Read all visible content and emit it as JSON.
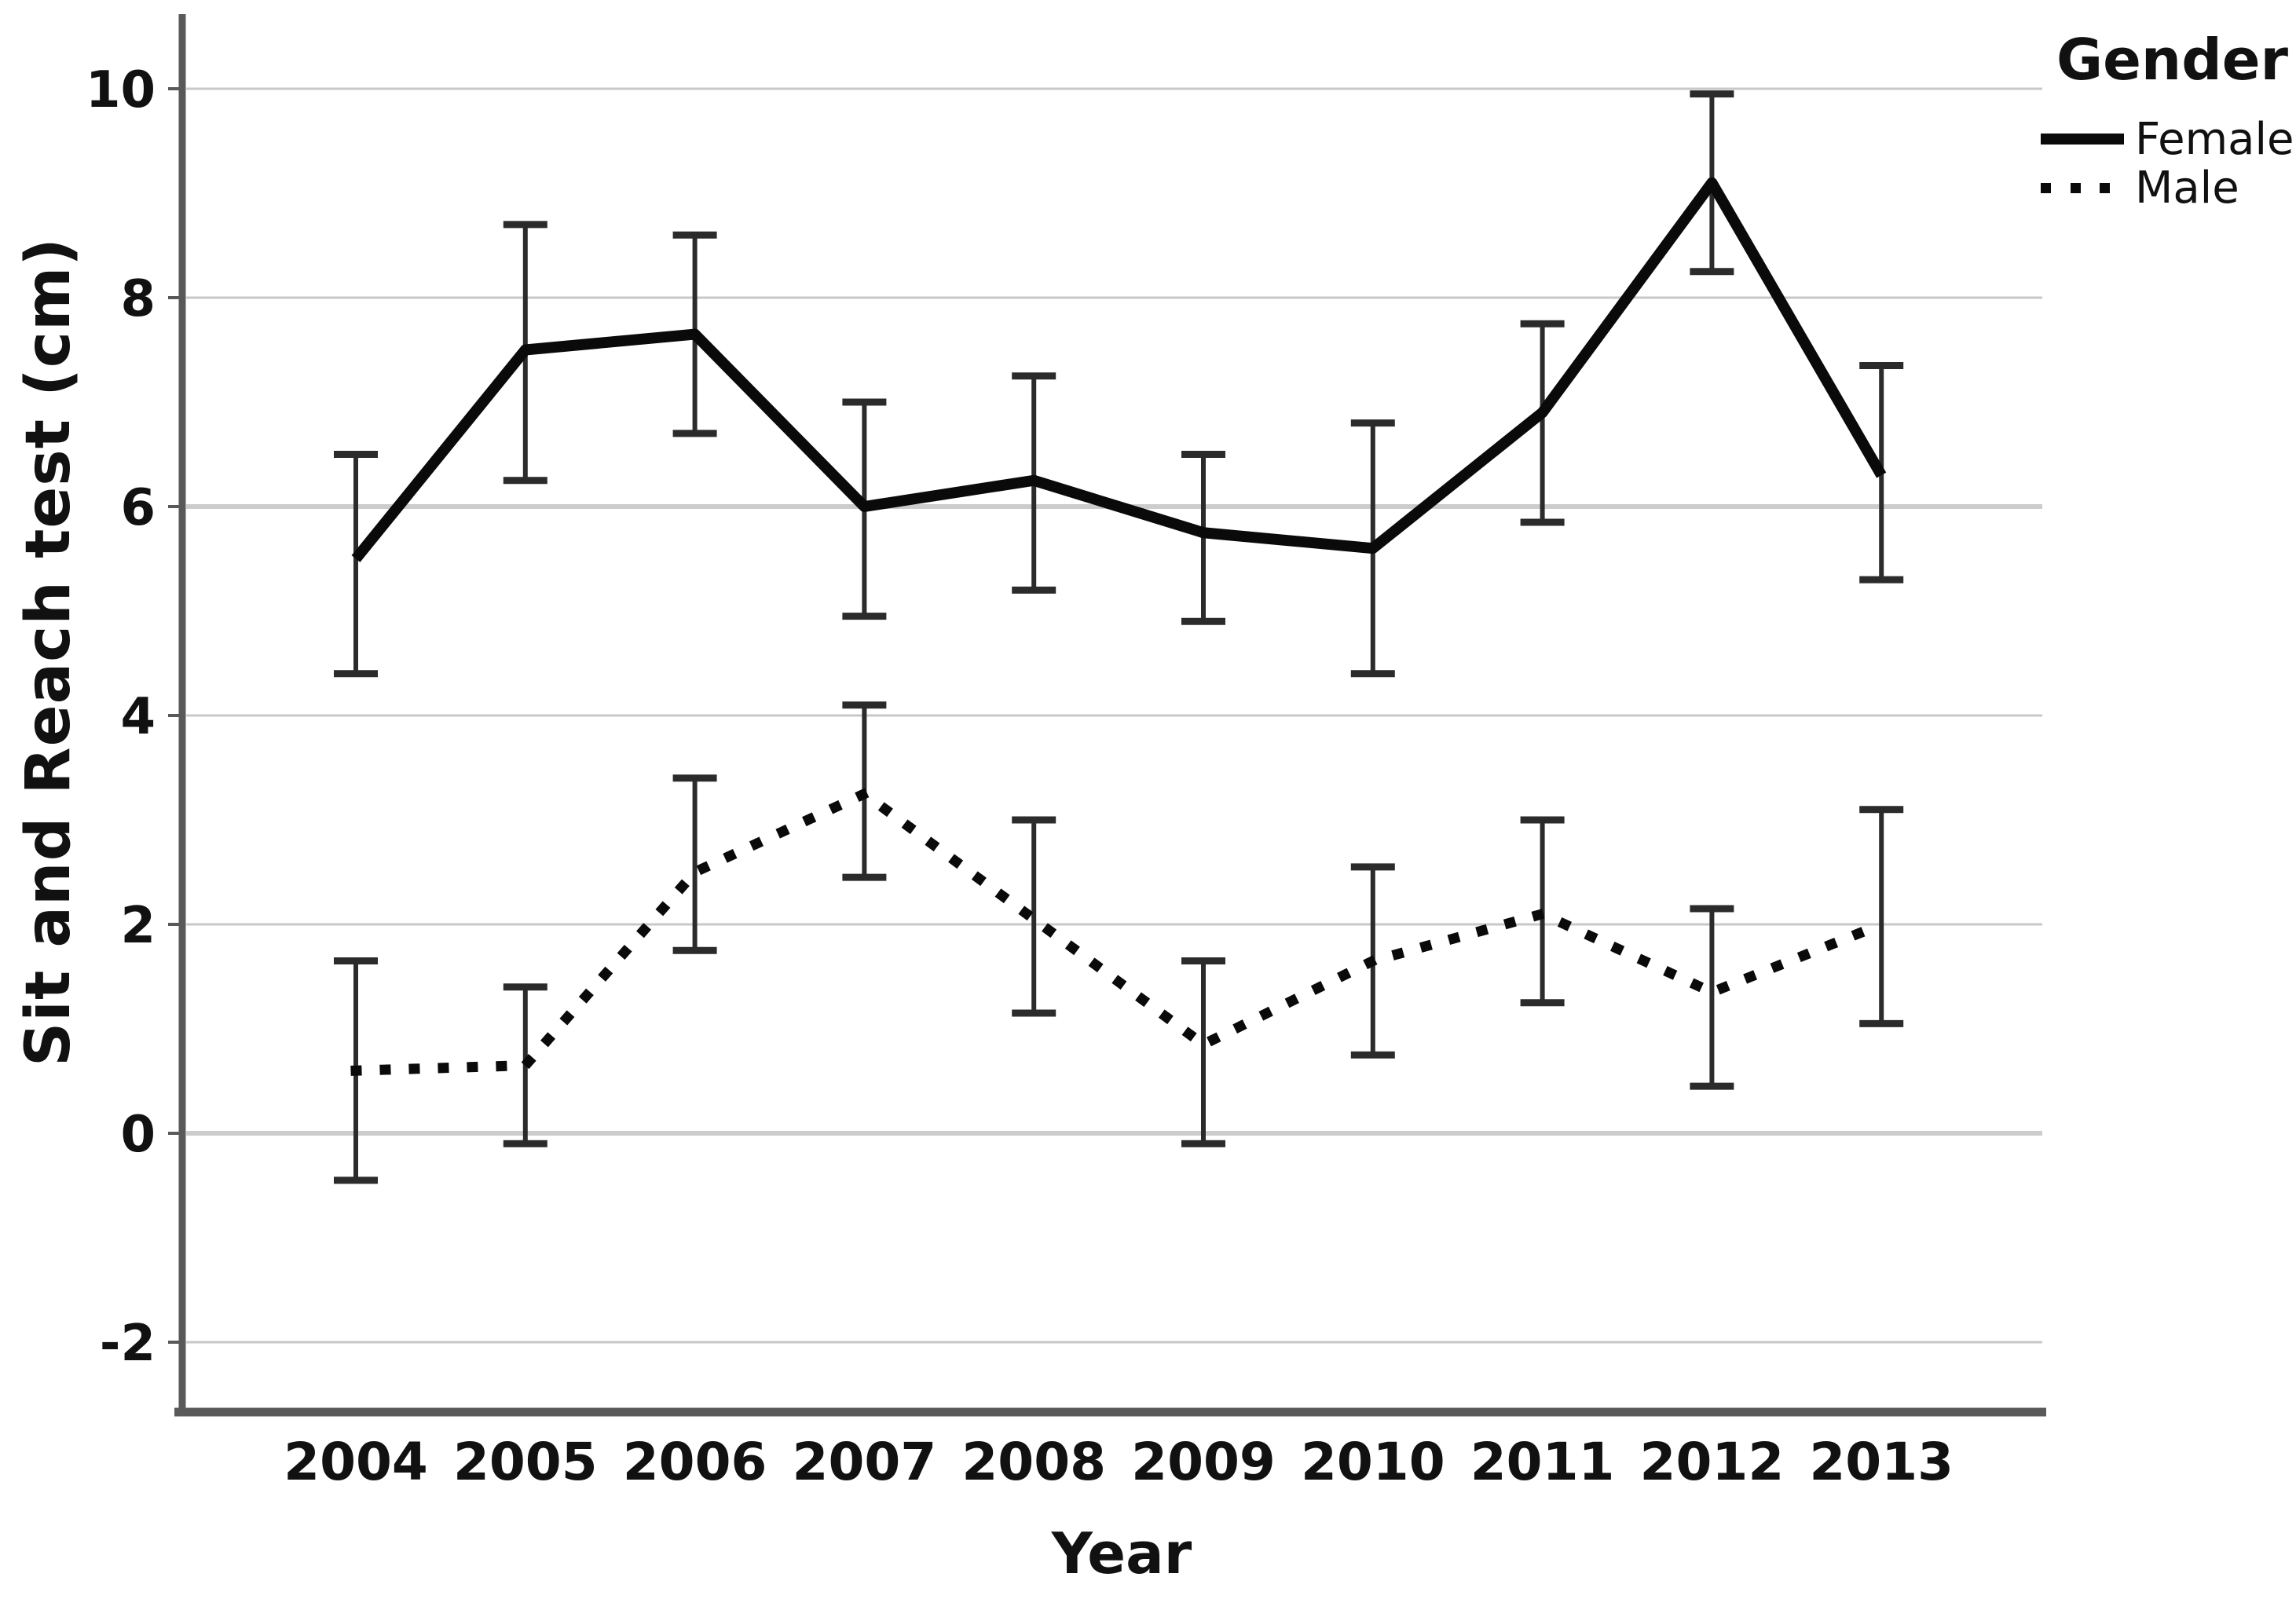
{
  "chart_data": {
    "type": "line",
    "title": "",
    "xlabel": "Year",
    "ylabel": "Sit and Reach test (cm)",
    "legend_title": "Gender",
    "legend_position": "top-right",
    "grid": true,
    "categories": [
      "2004",
      "2005",
      "2006",
      "2007",
      "2008",
      "2009",
      "2010",
      "2011",
      "2012",
      "2013"
    ],
    "yticks": [
      10,
      8,
      6,
      4,
      2,
      0,
      -2
    ],
    "ylim": [
      -2.7,
      10.7
    ],
    "error_bars": true,
    "series": [
      {
        "name": "Female",
        "line_style": "solid",
        "values": [
          5.5,
          7.5,
          7.65,
          6.0,
          6.25,
          5.75,
          5.6,
          6.9,
          9.1,
          6.3
        ],
        "err_low": [
          4.4,
          6.25,
          6.7,
          4.95,
          5.2,
          4.9,
          4.4,
          5.85,
          8.25,
          5.3
        ],
        "err_high": [
          6.5,
          8.7,
          8.6,
          7.0,
          7.25,
          6.5,
          6.8,
          7.75,
          9.95,
          7.35
        ]
      },
      {
        "name": "Male",
        "line_style": "dotted",
        "values": [
          0.6,
          0.65,
          2.5,
          3.25,
          2.05,
          0.85,
          1.65,
          2.1,
          1.35,
          2.0
        ],
        "err_low": [
          -0.45,
          -0.1,
          1.75,
          2.45,
          1.15,
          -0.1,
          0.75,
          1.25,
          0.45,
          1.05
        ],
        "err_high": [
          1.65,
          1.4,
          3.4,
          4.1,
          3.0,
          1.65,
          2.55,
          3.0,
          2.15,
          3.1
        ]
      }
    ]
  },
  "colors": {
    "background": "#ffffff",
    "grid": "#c8c8c8",
    "grid_major": "#cccccc",
    "axis": "#595959",
    "error_bar": "#2b2b2b",
    "series": "#0a0a0a",
    "text": "#111111"
  }
}
